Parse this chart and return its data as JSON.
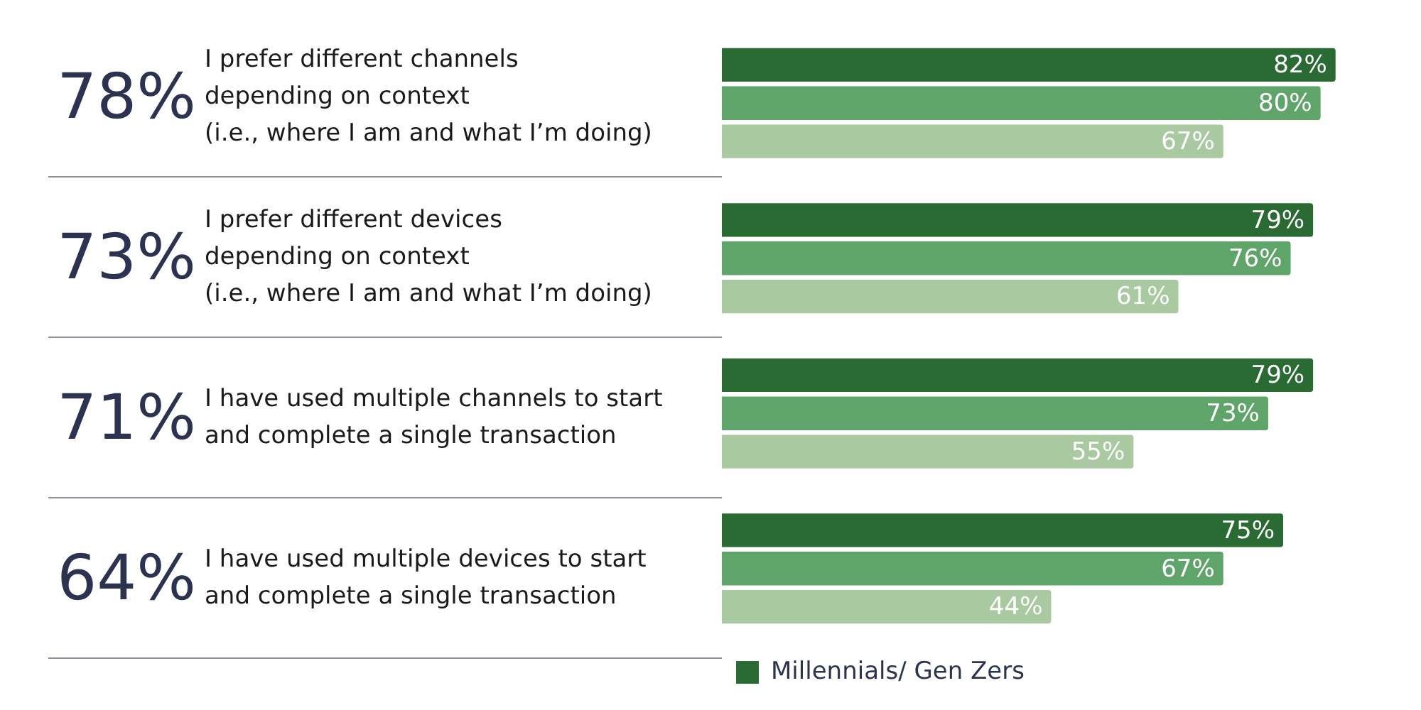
{
  "chart_data": {
    "type": "bar",
    "orientation": "horizontal",
    "categories": [
      "I prefer different channels\ndepending on context\n(i.e., where I am and what I’m doing)",
      "I prefer different devices\ndepending on context\n(i.e., where I am and what I’m doing)",
      "I have used multiple channels to start\nand complete a single transaction",
      "I have used multiple devices to start\nand complete a single transaction"
    ],
    "series": [
      {
        "name": "Millennials/ Gen Zers",
        "color": "#2a6b34",
        "values": [
          82,
          79,
          79,
          75
        ],
        "value_labels": [
          "82%",
          "79%",
          "79%",
          "75%"
        ]
      },
      {
        "color": "#5fa468",
        "values": [
          80,
          76,
          73,
          67
        ],
        "value_labels": [
          "80%",
          "76%",
          "73%",
          "67%"
        ]
      },
      {
        "color": "#a9c9a0",
        "values": [
          67,
          61,
          55,
          44
        ],
        "value_labels": [
          "67%",
          "61%",
          "55%",
          "44%"
        ]
      }
    ],
    "annotations": [
      "78%",
      "73%",
      "71%",
      "64%"
    ],
    "legend": "bottom"
  }
}
